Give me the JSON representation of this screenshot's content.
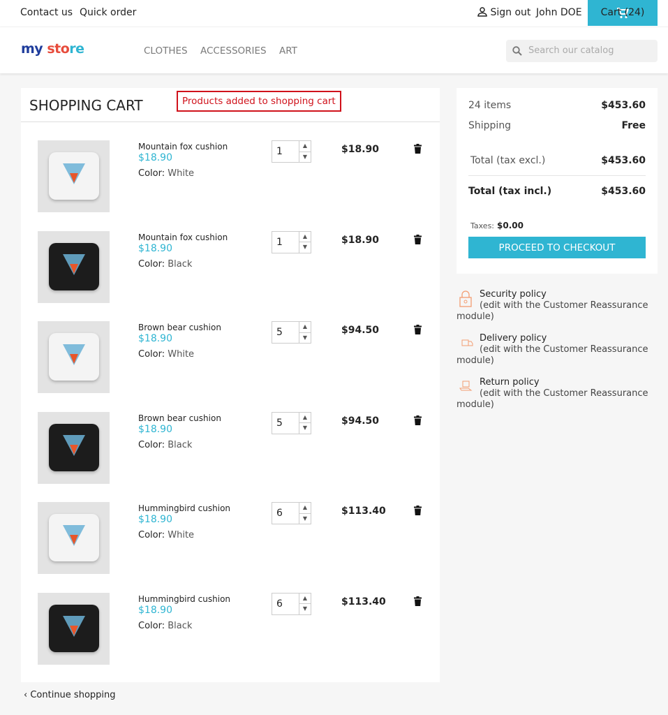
{
  "topbar": {
    "contact": "Contact us",
    "quick_order": "Quick order",
    "sign_out": "Sign out",
    "user": "John DOE",
    "cart": "Cart (24)"
  },
  "header": {
    "logo": "my store",
    "nav": [
      "CLOTHES",
      "ACCESSORIES",
      "ART"
    ],
    "search_placeholder": "Search our catalog"
  },
  "cart": {
    "title": "SHOPPING CART",
    "notice": "Products added to shopping cart",
    "color_label": "Color:",
    "items": [
      {
        "name": "Mountain fox cushion",
        "price": "$18.90",
        "color": "White",
        "qty": "1",
        "total": "$18.90",
        "pillow": "#f4f4f4"
      },
      {
        "name": "Mountain fox cushion",
        "price": "$18.90",
        "color": "Black",
        "qty": "1",
        "total": "$18.90",
        "pillow": "#1c1c1c"
      },
      {
        "name": "Brown bear cushion",
        "price": "$18.90",
        "color": "White",
        "qty": "5",
        "total": "$94.50",
        "pillow": "#f4f4f4"
      },
      {
        "name": "Brown bear cushion",
        "price": "$18.90",
        "color": "Black",
        "qty": "5",
        "total": "$94.50",
        "pillow": "#1c1c1c"
      },
      {
        "name": "Hummingbird cushion",
        "price": "$18.90",
        "color": "White",
        "qty": "6",
        "total": "$113.40",
        "pillow": "#f4f4f4"
      },
      {
        "name": "Hummingbird cushion",
        "price": "$18.90",
        "color": "Black",
        "qty": "6",
        "total": "$113.40",
        "pillow": "#1c1c1c"
      }
    ],
    "continue": "Continue shopping"
  },
  "summary": {
    "items_label": "24 items",
    "items_value": "$453.60",
    "shipping_label": "Shipping",
    "shipping_value": "Free",
    "excl_label": "Total (tax excl.)",
    "excl_value": "$453.60",
    "incl_label": "Total (tax incl.)",
    "incl_value": "$453.60",
    "taxes_label": "Taxes:",
    "taxes_value": "$0.00",
    "checkout": "PROCEED TO CHECKOUT"
  },
  "reassurance": [
    {
      "title": "Security policy",
      "desc": "(edit with the Customer Reassurance module)",
      "icon": "lock-icon"
    },
    {
      "title": "Delivery policy",
      "desc": "(edit with the Customer Reassurance module)",
      "icon": "truck-icon"
    },
    {
      "title": "Return policy",
      "desc": "(edit with the Customer Reassurance module)",
      "icon": "return-box-icon"
    }
  ],
  "colors": {
    "accent": "#2fb5d2",
    "notice": "#d0121b"
  }
}
